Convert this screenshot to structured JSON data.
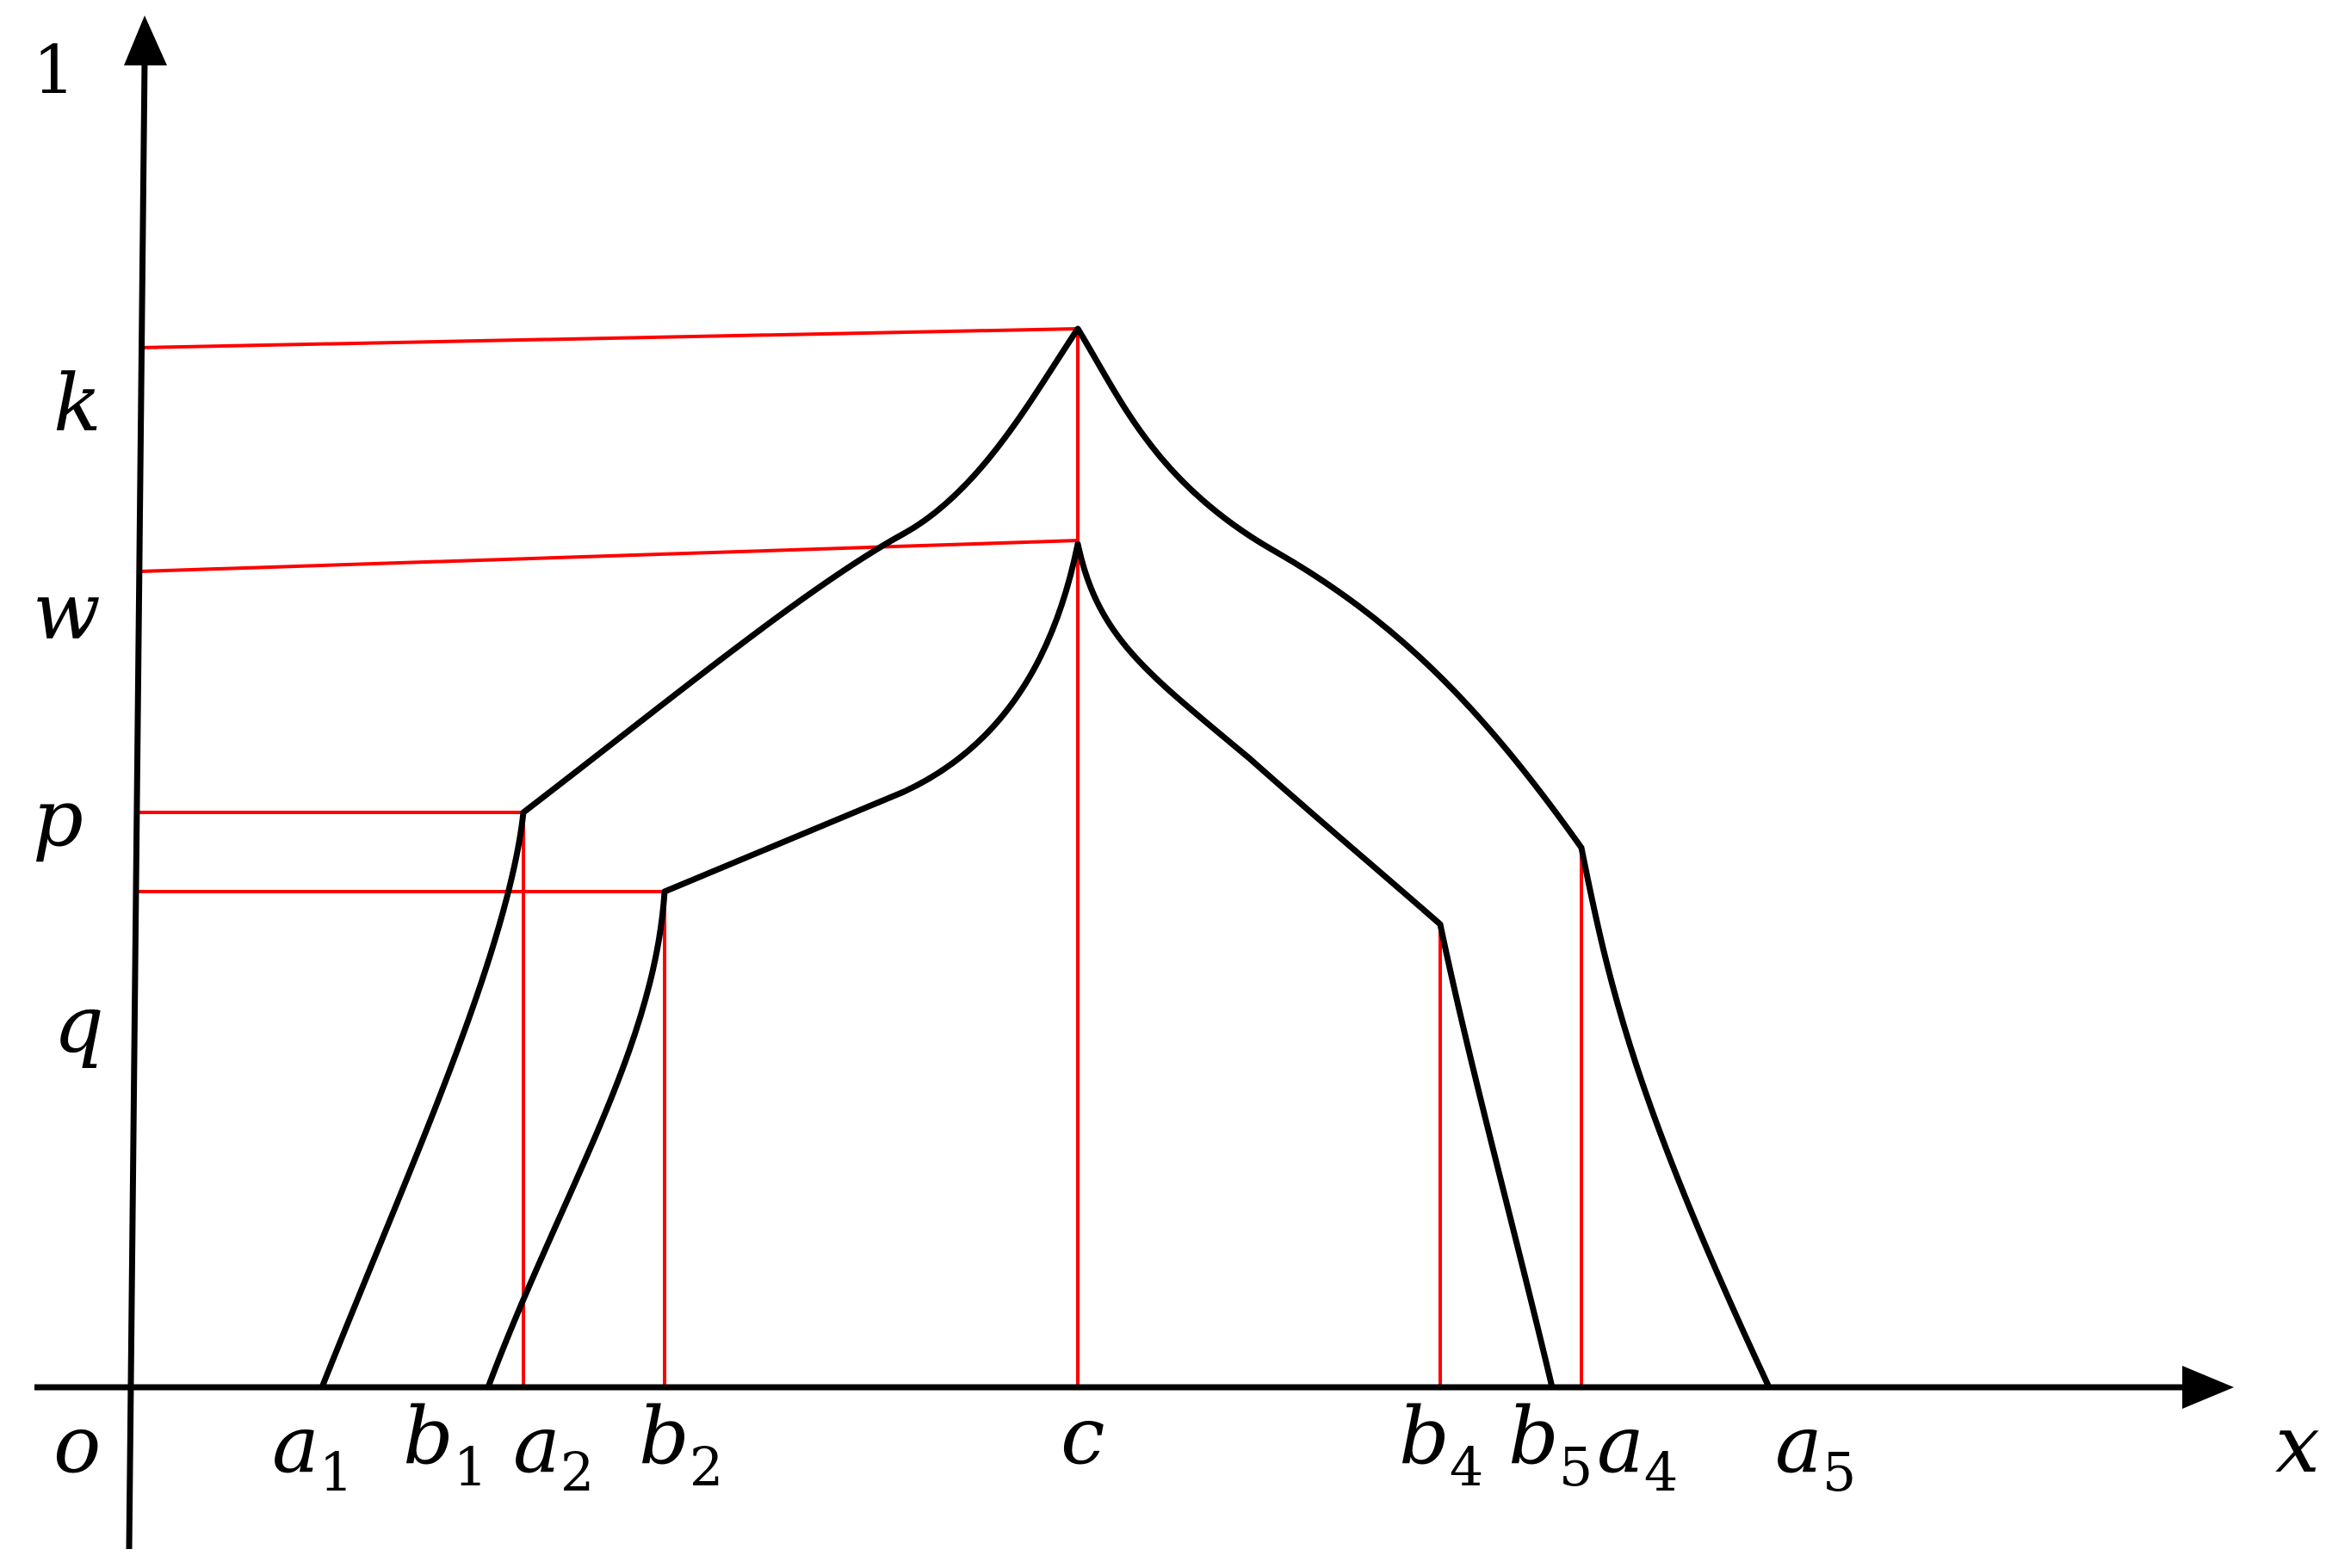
{
  "axes": {
    "y_top_label": "1",
    "origin_label": "o",
    "x_axis_label": "x"
  },
  "y_labels": {
    "k": "k",
    "w": "w",
    "p": "p",
    "q": "q"
  },
  "x_labels": {
    "a1": {
      "base": "a",
      "sub": "1"
    },
    "b1": {
      "base": "b",
      "sub": "1"
    },
    "a2": {
      "base": "a",
      "sub": "2"
    },
    "b2": {
      "base": "b",
      "sub": "2"
    },
    "c": {
      "base": "c",
      "sub": ""
    },
    "b4": {
      "base": "b",
      "sub": "4"
    },
    "b5": {
      "base": "b",
      "sub": "5"
    },
    "a4": {
      "base": "a",
      "sub": "4"
    },
    "a5": {
      "base": "a",
      "sub": "5"
    }
  },
  "colors": {
    "curve": "#000000",
    "guide": "#ff0000",
    "axis": "#000000"
  }
}
